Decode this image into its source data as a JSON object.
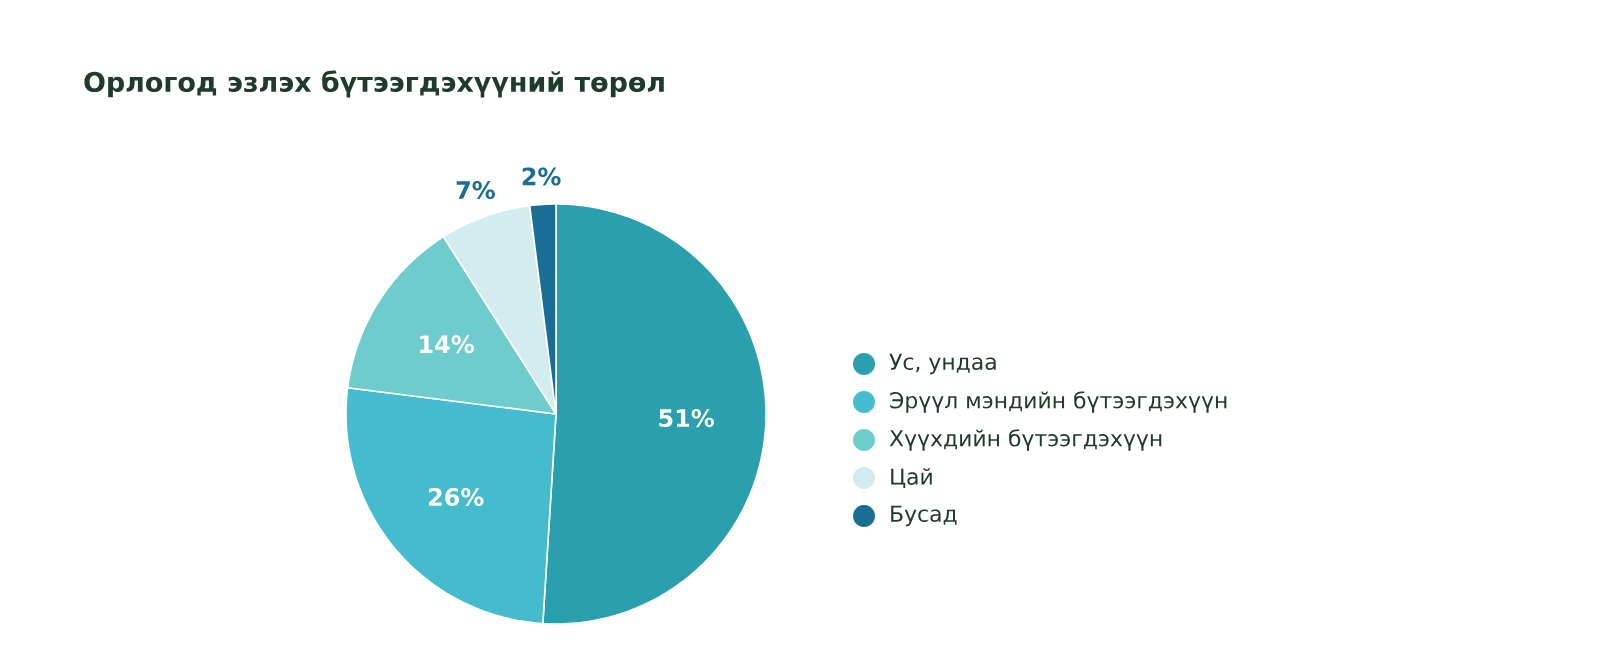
{
  "chart_data": {
    "type": "pie",
    "title": "Орлогод эзлэх бүтээгдэхүүний төрөл",
    "categories": [
      "Ус, ундаа",
      "Эрүүл мэндийн бүтээгдэхүүн",
      "Хүүхдийн бүтээгдэхүүн",
      "Цай",
      "Бусад"
    ],
    "values": [
      51,
      26,
      14,
      7,
      2
    ],
    "colors": [
      "#2a9fae",
      "#45bccd",
      "#6fcccc",
      "#d3ecef",
      "#1a6e96"
    ],
    "value_labels": [
      "51%",
      "26%",
      "14%",
      "7%",
      "2%"
    ],
    "legend": "right"
  }
}
